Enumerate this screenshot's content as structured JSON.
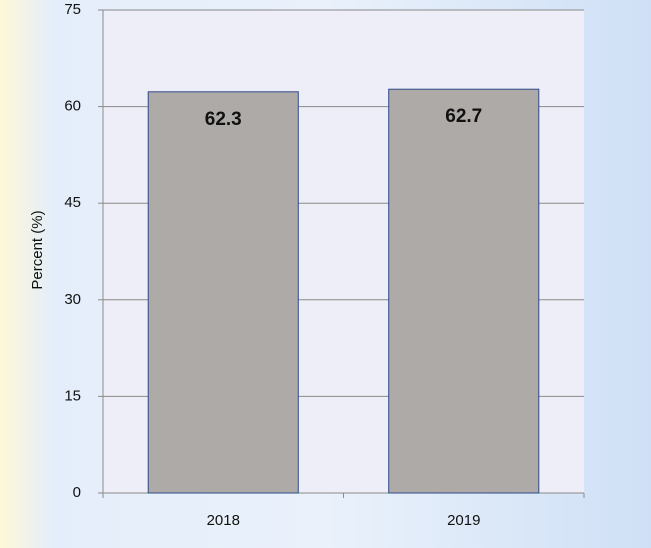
{
  "chart_data": {
    "type": "bar",
    "categories": [
      "2018",
      "2019"
    ],
    "values": [
      62.3,
      62.7
    ],
    "color": "#aeaaa7",
    "ylabel": "Percent (%)",
    "ylim": [
      0,
      75
    ],
    "yticks": [
      0,
      15,
      30,
      45,
      60,
      75
    ],
    "grid": true
  }
}
